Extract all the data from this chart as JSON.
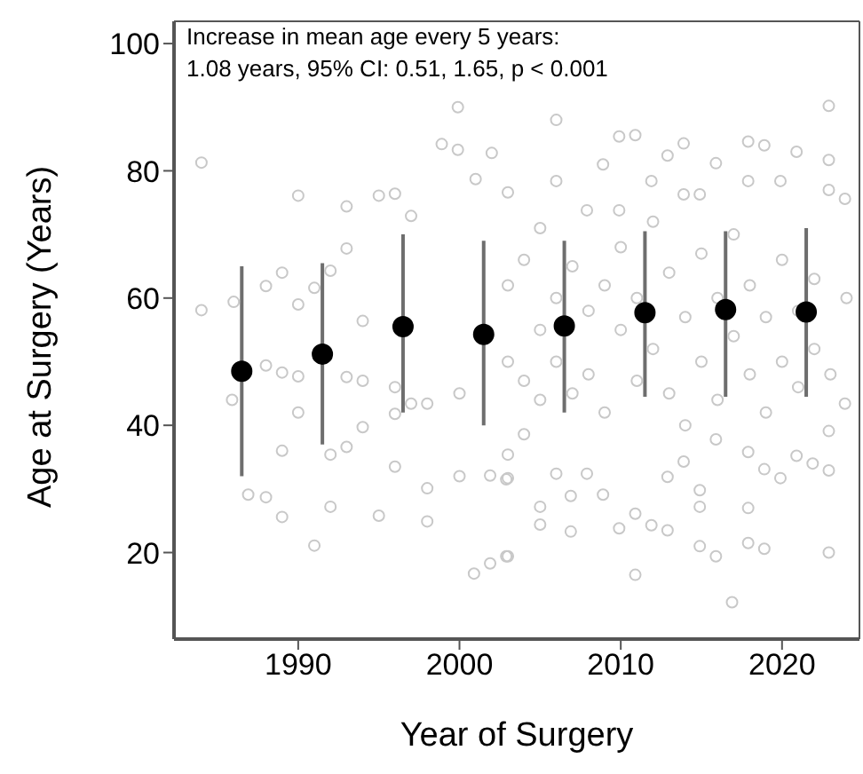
{
  "chart_data": {
    "type": "scatter",
    "xlabel": "Year of Surgery",
    "ylabel": "Age at Surgery (Years)",
    "annotations": [
      "Increase in mean age every 5 years:",
      "1.08 years, 95% CI: 0.51, 1.65, p < 0.001"
    ],
    "xlim": [
      1982.3,
      2024.8
    ],
    "xticks": [
      1990,
      2000,
      2010,
      2020
    ],
    "ylim": [
      6.4,
      103.5
    ],
    "yticks": [
      20,
      40,
      60,
      80,
      100
    ],
    "marker": "circle",
    "series": [
      {
        "color": "#c8c8c8",
        "x": [
          1984,
          1984,
          1986,
          1988,
          1989,
          1990,
          1990,
          1991,
          1992,
          1993,
          1993,
          1994,
          1995,
          1996,
          1997,
          1998.9,
          1999.9,
          1999.9,
          2001,
          2002,
          1985.9,
          1986.9,
          1988,
          1989,
          1988,
          1989,
          1989,
          1990,
          1990,
          1991,
          1992,
          1992,
          1993,
          1994,
          1993,
          1994,
          1995,
          1996,
          1996,
          1996,
          1997,
          1998,
          1998,
          1998,
          2000,
          2000,
          2000.9,
          2001.9,
          2002.9,
          2001.9,
          2002.9,
          2003,
          2005,
          2005,
          2006.9,
          2006.9,
          2010.9,
          2009.9,
          2011.9,
          2012.9,
          2014.9,
          2015.9,
          2016.9,
          2017.9,
          2018.9,
          2022.9,
          2017.9,
          2014.9,
          2014.9,
          2010.9,
          2008.9,
          2007.9,
          2006,
          2003,
          2003,
          2004,
          2012.9,
          2013.9,
          2015.9,
          2017.9,
          2018.9,
          2019.9,
          2020.9,
          2021.9,
          2022.9,
          2023.9,
          2022.9,
          2022.9,
          2006,
          2009.9,
          2010.9,
          2013.9,
          2017.9,
          2018.9,
          2020.9,
          2008.9,
          2012.9,
          2015.9,
          2022.9,
          2006,
          2003,
          2005,
          2007.9,
          2009.9,
          2011.9,
          2013.9,
          2014.9,
          2017.9,
          2019.9,
          2022.9,
          2023.9,
          2003,
          2003,
          2004,
          2004,
          2005,
          2005,
          2006,
          2006,
          2007,
          2007,
          2008,
          2008,
          2009,
          2009,
          2010,
          2010,
          2011,
          2011,
          2012,
          2012,
          2013,
          2013,
          2014,
          2014,
          2015,
          2015,
          2016,
          2016,
          2017,
          2017,
          2018,
          2018,
          2019,
          2019,
          2020,
          2020,
          2021,
          2021,
          2022,
          2022,
          2023,
          2024
        ],
        "values": [
          81.3,
          58.1,
          59.4,
          61.9,
          64,
          76.1,
          59,
          61.6,
          64.3,
          74.4,
          67.8,
          56.4,
          76.1,
          76.4,
          72.9,
          84.2,
          90,
          83.3,
          78.7,
          82.8,
          44,
          29.1,
          28.7,
          25.6,
          49.4,
          48.3,
          36,
          42,
          47.7,
          21.1,
          27.2,
          35.4,
          36.6,
          39.7,
          47.6,
          47,
          25.8,
          33.5,
          41.8,
          46,
          43.4,
          30.1,
          24.9,
          43.4,
          32,
          45,
          16.7,
          18.3,
          19.4,
          32.1,
          31.5,
          19.4,
          24.4,
          27.2,
          23.3,
          28.9,
          16.5,
          23.8,
          24.3,
          23.5,
          21,
          19.4,
          12.2,
          21.5,
          20.6,
          20,
          27,
          29.8,
          27.2,
          26.1,
          29.1,
          32.4,
          32.4,
          31.7,
          35.4,
          38.6,
          31.9,
          34.3,
          37.8,
          35.8,
          33.1,
          31.7,
          35.2,
          34,
          32.9,
          43.4,
          39.1,
          90.2,
          88,
          85.4,
          85.6,
          84.3,
          84.6,
          84,
          83,
          81,
          82.4,
          81.2,
          81.7,
          78.4,
          76.6,
          71,
          73.8,
          73.8,
          78.4,
          76.3,
          76.3,
          78.4,
          78.4,
          77,
          75.6,
          50,
          62,
          47,
          66,
          55,
          44,
          60,
          50,
          45,
          65,
          58,
          48,
          62,
          42,
          55,
          68,
          47,
          60,
          52,
          72,
          64,
          45,
          57,
          40,
          67,
          50,
          60,
          44,
          54,
          70,
          48,
          62,
          57,
          42,
          66,
          50,
          58,
          46,
          63,
          52,
          48,
          60
        ]
      },
      {
        "color": "#000000",
        "x": [
          1986.5,
          1991.5,
          1996.5,
          2001.5,
          2006.5,
          2011.5,
          2016.5,
          2021.5
        ],
        "values": [
          48.5,
          51.2,
          55.5,
          54.3,
          55.6,
          57.7,
          58.2,
          57.8
        ],
        "errors": [
          [
            32,
            65
          ],
          [
            37,
            65.5
          ],
          [
            42,
            70
          ],
          [
            40,
            69
          ],
          [
            42,
            69
          ],
          [
            44.5,
            70.5
          ],
          [
            44.5,
            70.5
          ],
          [
            44.5,
            71
          ]
        ]
      }
    ]
  }
}
